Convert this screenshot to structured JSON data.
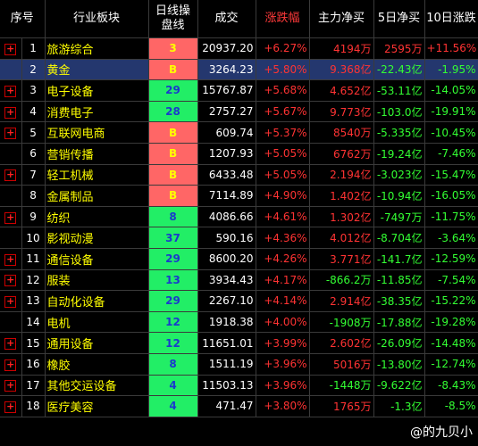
{
  "headers": {
    "seq": "序号",
    "sector": "行业板块",
    "dayline": "日线操\n盘线",
    "volume": "成交",
    "change": "涨跌幅",
    "mainflow": "主力净买",
    "flow5": "5日净买",
    "change10": "10日涨跌"
  },
  "rows": [
    {
      "exp": "+",
      "no": "1",
      "name": "旅游综合",
      "tag": "3",
      "tagType": "b",
      "vol": "20937.20",
      "chg": "+6.27%",
      "main": "4194万",
      "main_c": "red",
      "f5": "2595万",
      "f5_c": "red",
      "c10": "+11.56%",
      "c10_c": "red"
    },
    {
      "exp": "",
      "no": "2",
      "name": "黄金",
      "tag": "B",
      "tagType": "b",
      "vol": "3264.23",
      "chg": "+5.80%",
      "main": "9.368亿",
      "main_c": "red",
      "f5": "-22.43亿",
      "f5_c": "grn",
      "c10": "-1.95%",
      "c10_c": "grn",
      "sel": true
    },
    {
      "exp": "+",
      "no": "3",
      "name": "电子设备",
      "tag": "29",
      "tagType": "g",
      "vol": "15767.87",
      "chg": "+5.68%",
      "main": "4.652亿",
      "main_c": "red",
      "f5": "-53.11亿",
      "f5_c": "grn",
      "c10": "-14.05%",
      "c10_c": "grn"
    },
    {
      "exp": "+",
      "no": "4",
      "name": "消费电子",
      "tag": "28",
      "tagType": "g",
      "vol": "2757.27",
      "chg": "+5.67%",
      "main": "9.773亿",
      "main_c": "red",
      "f5": "-103.0亿",
      "f5_c": "grn",
      "c10": "-19.91%",
      "c10_c": "grn"
    },
    {
      "exp": "+",
      "no": "5",
      "name": "互联网电商",
      "tag": "B",
      "tagType": "b",
      "vol": "609.74",
      "chg": "+5.37%",
      "main": "8540万",
      "main_c": "red",
      "f5": "-5.335亿",
      "f5_c": "grn",
      "c10": "-10.45%",
      "c10_c": "grn"
    },
    {
      "exp": "",
      "no": "6",
      "name": "营销传播",
      "tag": "B",
      "tagType": "b",
      "vol": "1207.93",
      "chg": "+5.05%",
      "main": "6762万",
      "main_c": "red",
      "f5": "-19.24亿",
      "f5_c": "grn",
      "c10": "-7.46%",
      "c10_c": "grn"
    },
    {
      "exp": "+",
      "no": "7",
      "name": "轻工机械",
      "tag": "B",
      "tagType": "b",
      "vol": "6433.48",
      "chg": "+5.05%",
      "main": "2.194亿",
      "main_c": "red",
      "f5": "-3.023亿",
      "f5_c": "grn",
      "c10": "-15.47%",
      "c10_c": "grn"
    },
    {
      "exp": "",
      "no": "8",
      "name": "金属制品",
      "tag": "B",
      "tagType": "b",
      "vol": "7114.89",
      "chg": "+4.90%",
      "main": "1.402亿",
      "main_c": "red",
      "f5": "-10.94亿",
      "f5_c": "grn",
      "c10": "-16.05%",
      "c10_c": "grn"
    },
    {
      "exp": "+",
      "no": "9",
      "name": "纺织",
      "tag": "8",
      "tagType": "g",
      "vol": "4086.66",
      "chg": "+4.61%",
      "main": "1.302亿",
      "main_c": "red",
      "f5": "-7497万",
      "f5_c": "grn",
      "c10": "-11.75%",
      "c10_c": "grn"
    },
    {
      "exp": "",
      "no": "10",
      "name": "影视动漫",
      "tag": "37",
      "tagType": "g",
      "vol": "590.16",
      "chg": "+4.36%",
      "main": "4.012亿",
      "main_c": "red",
      "f5": "-8.704亿",
      "f5_c": "grn",
      "c10": "-3.64%",
      "c10_c": "grn"
    },
    {
      "exp": "+",
      "no": "11",
      "name": "通信设备",
      "tag": "29",
      "tagType": "g",
      "vol": "8600.20",
      "chg": "+4.26%",
      "main": "3.771亿",
      "main_c": "red",
      "f5": "-141.7亿",
      "f5_c": "grn",
      "c10": "-12.59%",
      "c10_c": "grn"
    },
    {
      "exp": "+",
      "no": "12",
      "name": "服装",
      "tag": "13",
      "tagType": "g",
      "vol": "3934.43",
      "chg": "+4.17%",
      "main": "-866.2万",
      "main_c": "grn",
      "f5": "-11.85亿",
      "f5_c": "grn",
      "c10": "-7.54%",
      "c10_c": "grn"
    },
    {
      "exp": "+",
      "no": "13",
      "name": "自动化设备",
      "tag": "29",
      "tagType": "g",
      "vol": "2267.10",
      "chg": "+4.14%",
      "main": "2.914亿",
      "main_c": "red",
      "f5": "-38.35亿",
      "f5_c": "grn",
      "c10": "-15.22%",
      "c10_c": "grn"
    },
    {
      "exp": "",
      "no": "14",
      "name": "电机",
      "tag": "12",
      "tagType": "g",
      "vol": "1918.38",
      "chg": "+4.00%",
      "main": "-1908万",
      "main_c": "grn",
      "f5": "-17.88亿",
      "f5_c": "grn",
      "c10": "-19.28%",
      "c10_c": "grn"
    },
    {
      "exp": "+",
      "no": "15",
      "name": "通用设备",
      "tag": "12",
      "tagType": "g",
      "vol": "11651.01",
      "chg": "+3.99%",
      "main": "2.602亿",
      "main_c": "red",
      "f5": "-26.09亿",
      "f5_c": "grn",
      "c10": "-14.48%",
      "c10_c": "grn"
    },
    {
      "exp": "+",
      "no": "16",
      "name": "橡胶",
      "tag": "8",
      "tagType": "g",
      "vol": "1511.19",
      "chg": "+3.96%",
      "main": "5016万",
      "main_c": "red",
      "f5": "-13.80亿",
      "f5_c": "grn",
      "c10": "-12.74%",
      "c10_c": "grn"
    },
    {
      "exp": "+",
      "no": "17",
      "name": "其他交运设备",
      "tag": "4",
      "tagType": "g",
      "vol": "11503.13",
      "chg": "+3.96%",
      "main": "-1448万",
      "main_c": "grn",
      "f5": "-9.622亿",
      "f5_c": "grn",
      "c10": "-8.43%",
      "c10_c": "grn"
    },
    {
      "exp": "+",
      "no": "18",
      "name": "医疗美容",
      "tag": "4",
      "tagType": "g",
      "vol": "471.47",
      "chg": "+3.80%",
      "main": "1765万",
      "main_c": "red",
      "f5": "-1.3亿",
      "f5_c": "grn",
      "c10": "-8.5%",
      "c10_c": "grn"
    }
  ],
  "watermark": "@的九贝小"
}
